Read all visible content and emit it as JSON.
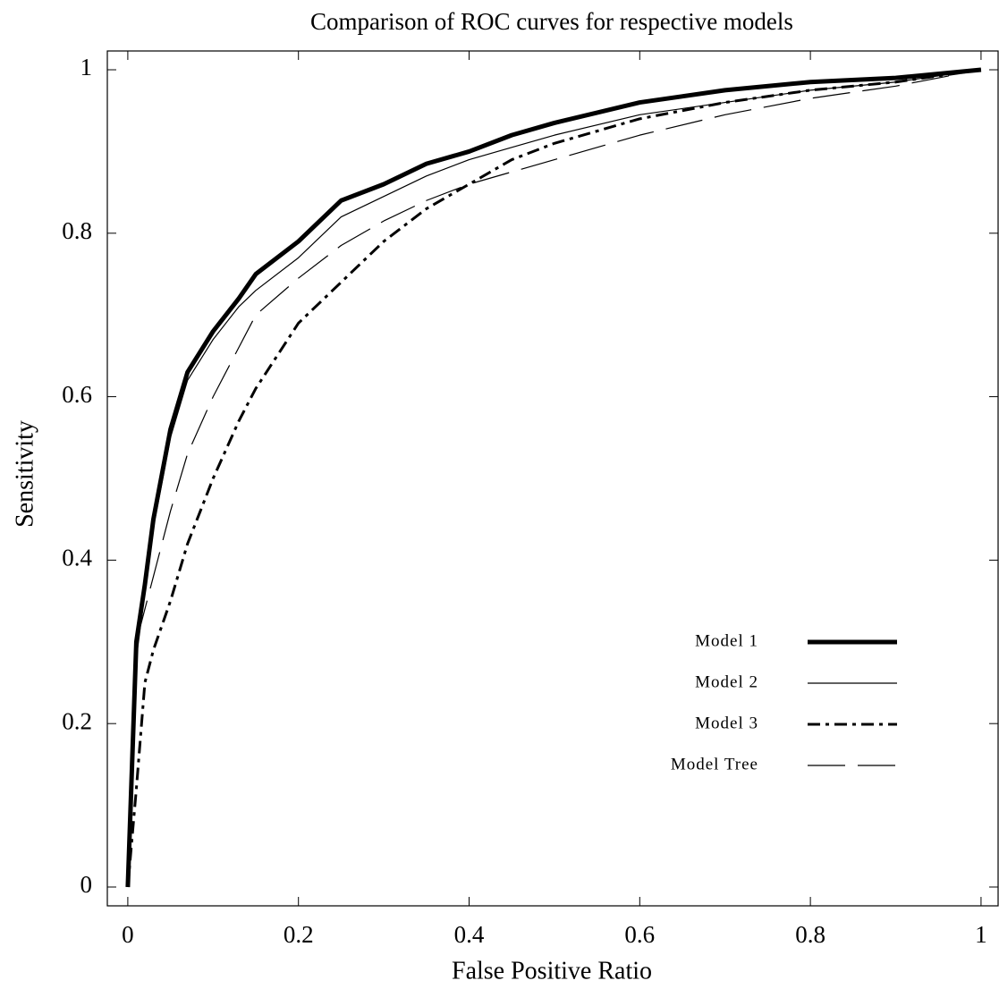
{
  "chart_data": {
    "type": "line",
    "title": "Comparison of ROC curves for respective models",
    "x_label": "False Positive Ratio",
    "y_label": "Sensitivity",
    "x": [
      0,
      0.005,
      0.01,
      0.02,
      0.03,
      0.05,
      0.07,
      0.1,
      0.13,
      0.15,
      0.2,
      0.25,
      0.3,
      0.35,
      0.4,
      0.45,
      0.5,
      0.6,
      0.7,
      0.8,
      0.9,
      1
    ],
    "series": [
      {
        "name": "Model 1",
        "color": "#000000",
        "stroke_width": 5,
        "dash": "none",
        "values": [
          0,
          0.15,
          0.3,
          0.37,
          0.45,
          0.56,
          0.63,
          0.68,
          0.72,
          0.75,
          0.79,
          0.84,
          0.86,
          0.885,
          0.9,
          0.92,
          0.935,
          0.96,
          0.975,
          0.985,
          0.99,
          1
        ]
      },
      {
        "name": "Model 2",
        "color": "#000000",
        "stroke_width": 1.2,
        "dash": "none",
        "values": [
          0,
          0.15,
          0.28,
          0.36,
          0.44,
          0.55,
          0.62,
          0.67,
          0.71,
          0.73,
          0.77,
          0.82,
          0.845,
          0.87,
          0.89,
          0.905,
          0.92,
          0.945,
          0.96,
          0.975,
          0.985,
          1
        ]
      },
      {
        "name": "Model 3",
        "color": "#000000",
        "stroke_width": 3,
        "dash": "14,6,4,6",
        "values": [
          0,
          0.06,
          0.12,
          0.25,
          0.29,
          0.35,
          0.42,
          0.5,
          0.57,
          0.61,
          0.69,
          0.74,
          0.79,
          0.83,
          0.86,
          0.89,
          0.91,
          0.94,
          0.96,
          0.975,
          0.985,
          1
        ]
      },
      {
        "name": "Model Tree",
        "color": "#000000",
        "stroke_width": 1.2,
        "dash": "42,14",
        "values": [
          0,
          0.15,
          0.3,
          0.34,
          0.38,
          0.46,
          0.53,
          0.6,
          0.66,
          0.7,
          0.745,
          0.785,
          0.815,
          0.84,
          0.86,
          0.875,
          0.89,
          0.92,
          0.945,
          0.965,
          0.98,
          1
        ]
      }
    ],
    "xlim": [
      -0.024,
      1.02
    ],
    "ylim": [
      -0.023,
      1.023
    ],
    "xticks": [
      0,
      0.2,
      0.4,
      0.6,
      0.8,
      1
    ],
    "yticks": [
      0,
      0.2,
      0.4,
      0.6,
      0.8,
      1
    ],
    "grid": false,
    "legend": "lower right"
  }
}
